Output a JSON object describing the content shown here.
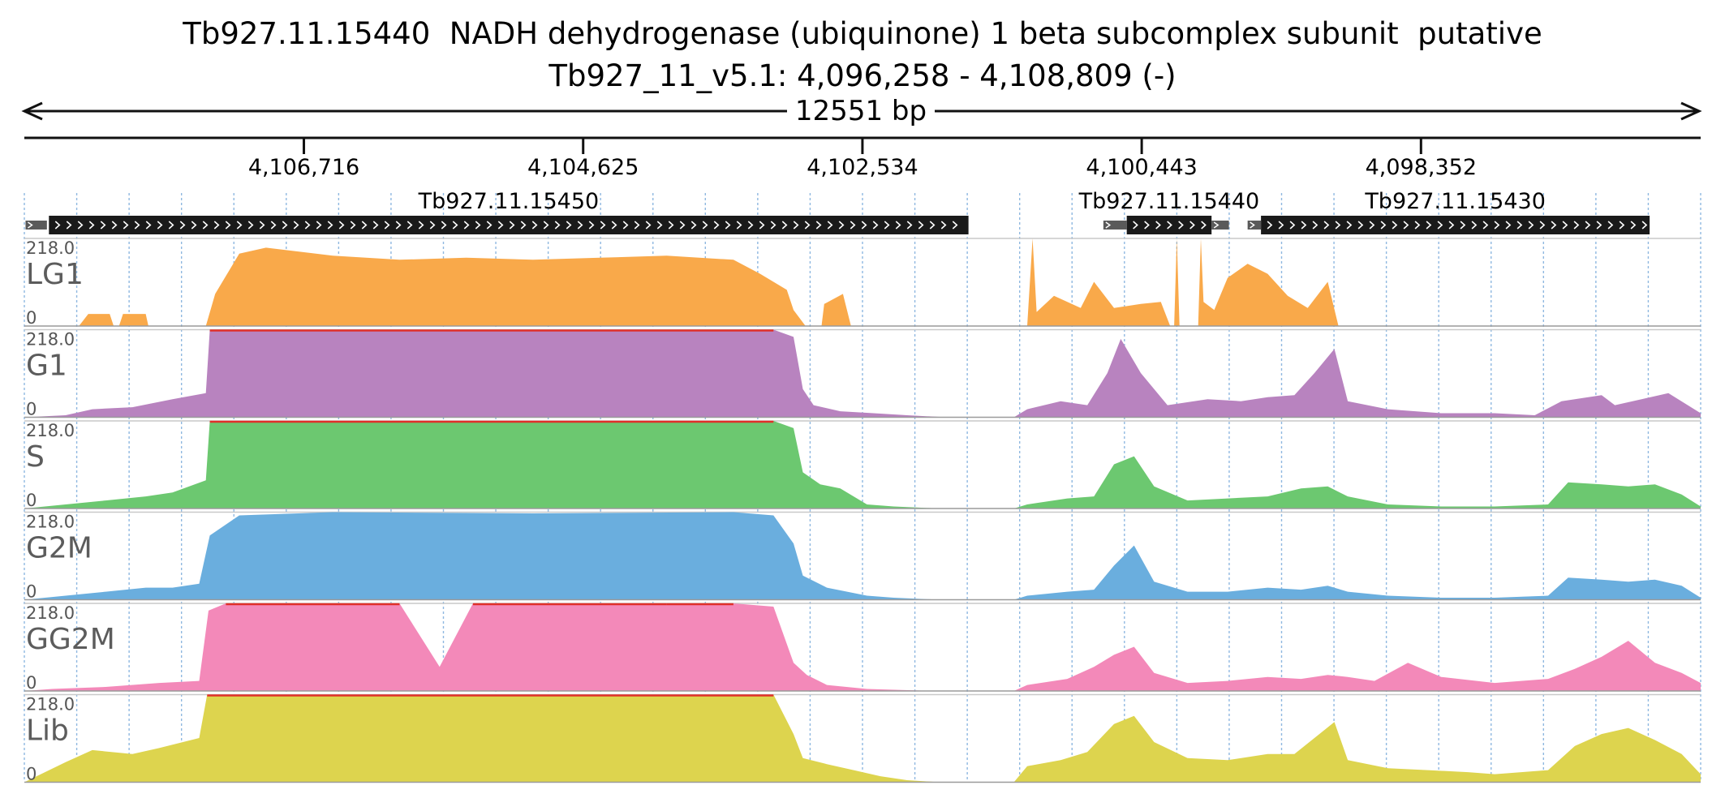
{
  "title": {
    "line1": "Tb927.11.15440  NADH dehydrogenase (ubiquinone) 1 beta subcomplex subunit  putative",
    "line2": "Tb927_11_v5.1: 4,096,258 - 4,108,809 (-)"
  },
  "span": {
    "label": "12551 bp"
  },
  "ticks": [
    "4,106,716",
    "4,104,625",
    "4,102,534",
    "4,100,443",
    "4,098,352"
  ],
  "genes": [
    {
      "name": "Tb927.11.15450",
      "start": 4108625,
      "end": 4101740,
      "strand": "-"
    },
    {
      "name": "Tb927.11.15440",
      "start": 4100555,
      "end": 4099920,
      "strand": "-"
    },
    {
      "name": "Tb927.11.15430",
      "start": 4099550,
      "end": 4096640,
      "strand": "-"
    }
  ],
  "colors": {
    "LG1": "#f9a94a",
    "G1": "#b883bf",
    "S": "#6cc870",
    "G2M": "#6aaede",
    "GG2M": "#f389b9",
    "Lib": "#ddd44e",
    "clip": "#e0302a",
    "gridline": "#8fb8e0",
    "gene": "#1a1a1a"
  },
  "chart_data": {
    "type": "area",
    "x_axis": "genome coordinate (reversed, minus strand)",
    "xlim": [
      4108809,
      4096258
    ],
    "ylim": [
      0,
      218.0
    ],
    "series": [
      {
        "name": "LG1",
        "points": [
          [
            4108400,
            0
          ],
          [
            4108330,
            30
          ],
          [
            4108170,
            30
          ],
          [
            4108140,
            0
          ],
          [
            4108100,
            0
          ],
          [
            4108070,
            30
          ],
          [
            4107900,
            30
          ],
          [
            4107880,
            0
          ],
          [
            4107450,
            0
          ],
          [
            4107380,
            80
          ],
          [
            4107200,
            180
          ],
          [
            4107000,
            195
          ],
          [
            4106500,
            175
          ],
          [
            4106000,
            165
          ],
          [
            4105500,
            170
          ],
          [
            4105000,
            165
          ],
          [
            4104500,
            170
          ],
          [
            4104000,
            175
          ],
          [
            4103500,
            165
          ],
          [
            4103300,
            130
          ],
          [
            4103100,
            90
          ],
          [
            4103050,
            40
          ],
          [
            4102960,
            0
          ],
          [
            4102840,
            0
          ],
          [
            4102820,
            55
          ],
          [
            4102680,
            80
          ],
          [
            4102620,
            0
          ],
          [
            4101300,
            0
          ],
          [
            4101260,
            218
          ],
          [
            4101230,
            35
          ],
          [
            4101100,
            75
          ],
          [
            4100900,
            45
          ],
          [
            4100800,
            110
          ],
          [
            4100650,
            45
          ],
          [
            4100450,
            55
          ],
          [
            4100300,
            60
          ],
          [
            4100230,
            0
          ],
          [
            4100200,
            0
          ],
          [
            4100180,
            218
          ],
          [
            4100160,
            0
          ],
          [
            4100020,
            0
          ],
          [
            4100000,
            218
          ],
          [
            4099980,
            60
          ],
          [
            4099900,
            40
          ],
          [
            4099800,
            120
          ],
          [
            4099650,
            155
          ],
          [
            4099500,
            130
          ],
          [
            4099350,
            75
          ],
          [
            4099200,
            45
          ],
          [
            4099050,
            110
          ],
          [
            4098970,
            0
          ]
        ]
      },
      {
        "name": "G1",
        "points": [
          [
            4108809,
            0
          ],
          [
            4108500,
            5
          ],
          [
            4108300,
            20
          ],
          [
            4108000,
            25
          ],
          [
            4107700,
            45
          ],
          [
            4107450,
            60
          ],
          [
            4107420,
            218
          ],
          [
            4105000,
            218
          ],
          [
            4103200,
            218
          ],
          [
            4103050,
            200
          ],
          [
            4102980,
            70
          ],
          [
            4102900,
            30
          ],
          [
            4102700,
            15
          ],
          [
            4102450,
            10
          ],
          [
            4102200,
            5
          ],
          [
            4101900,
            0
          ],
          [
            4101400,
            0
          ],
          [
            4101300,
            20
          ],
          [
            4101050,
            40
          ],
          [
            4100850,
            30
          ],
          [
            4100700,
            110
          ],
          [
            4100600,
            195
          ],
          [
            4100450,
            110
          ],
          [
            4100250,
            30
          ],
          [
            4099950,
            45
          ],
          [
            4099700,
            40
          ],
          [
            4099500,
            50
          ],
          [
            4099300,
            55
          ],
          [
            4099150,
            110
          ],
          [
            4099000,
            170
          ],
          [
            4098900,
            40
          ],
          [
            4098600,
            20
          ],
          [
            4098200,
            10
          ],
          [
            4097800,
            10
          ],
          [
            4097500,
            5
          ],
          [
            4097300,
            40
          ],
          [
            4097000,
            55
          ],
          [
            4096900,
            30
          ],
          [
            4096700,
            45
          ],
          [
            4096500,
            60
          ],
          [
            4096258,
            10
          ]
        ]
      },
      {
        "name": "S",
        "points": [
          [
            4108809,
            0
          ],
          [
            4108500,
            10
          ],
          [
            4108200,
            20
          ],
          [
            4107900,
            30
          ],
          [
            4107700,
            40
          ],
          [
            4107450,
            70
          ],
          [
            4107420,
            218
          ],
          [
            4105000,
            218
          ],
          [
            4103200,
            218
          ],
          [
            4103050,
            200
          ],
          [
            4102980,
            90
          ],
          [
            4102850,
            60
          ],
          [
            4102700,
            50
          ],
          [
            4102500,
            10
          ],
          [
            4102300,
            5
          ],
          [
            4101950,
            0
          ],
          [
            4101400,
            0
          ],
          [
            4101300,
            10
          ],
          [
            4101000,
            25
          ],
          [
            4100800,
            30
          ],
          [
            4100650,
            110
          ],
          [
            4100500,
            130
          ],
          [
            4100350,
            55
          ],
          [
            4100100,
            20
          ],
          [
            4099800,
            25
          ],
          [
            4099500,
            30
          ],
          [
            4099250,
            50
          ],
          [
            4099050,
            55
          ],
          [
            4098900,
            30
          ],
          [
            4098600,
            10
          ],
          [
            4098200,
            5
          ],
          [
            4097800,
            5
          ],
          [
            4097400,
            10
          ],
          [
            4097250,
            65
          ],
          [
            4097000,
            60
          ],
          [
            4096800,
            55
          ],
          [
            4096600,
            60
          ],
          [
            4096400,
            35
          ],
          [
            4096258,
            5
          ]
        ]
      },
      {
        "name": "G2M",
        "points": [
          [
            4108809,
            0
          ],
          [
            4108500,
            10
          ],
          [
            4108200,
            20
          ],
          [
            4107900,
            30
          ],
          [
            4107700,
            30
          ],
          [
            4107500,
            40
          ],
          [
            4107420,
            160
          ],
          [
            4107200,
            210
          ],
          [
            4106500,
            218
          ],
          [
            4105000,
            215
          ],
          [
            4103500,
            218
          ],
          [
            4103200,
            210
          ],
          [
            4103050,
            140
          ],
          [
            4102980,
            60
          ],
          [
            4102800,
            30
          ],
          [
            4102500,
            10
          ],
          [
            4102300,
            5
          ],
          [
            4101950,
            0
          ],
          [
            4101400,
            0
          ],
          [
            4101300,
            10
          ],
          [
            4101000,
            20
          ],
          [
            4100800,
            25
          ],
          [
            4100650,
            85
          ],
          [
            4100500,
            135
          ],
          [
            4100350,
            45
          ],
          [
            4100100,
            20
          ],
          [
            4099800,
            20
          ],
          [
            4099500,
            30
          ],
          [
            4099250,
            25
          ],
          [
            4099050,
            35
          ],
          [
            4098900,
            20
          ],
          [
            4098600,
            10
          ],
          [
            4098200,
            5
          ],
          [
            4097800,
            5
          ],
          [
            4097400,
            10
          ],
          [
            4097250,
            55
          ],
          [
            4097000,
            50
          ],
          [
            4096800,
            45
          ],
          [
            4096600,
            50
          ],
          [
            4096400,
            35
          ],
          [
            4096258,
            5
          ]
        ]
      },
      {
        "name": "GG2M",
        "points": [
          [
            4108809,
            0
          ],
          [
            4108600,
            5
          ],
          [
            4108200,
            10
          ],
          [
            4107800,
            20
          ],
          [
            4107500,
            25
          ],
          [
            4107430,
            200
          ],
          [
            4107300,
            218
          ],
          [
            4106000,
            218
          ],
          [
            4105700,
            60
          ],
          [
            4105450,
            218
          ],
          [
            4104000,
            218
          ],
          [
            4103500,
            218
          ],
          [
            4103200,
            210
          ],
          [
            4103050,
            70
          ],
          [
            4102950,
            40
          ],
          [
            4102800,
            15
          ],
          [
            4102500,
            5
          ],
          [
            4102000,
            0
          ],
          [
            4101400,
            0
          ],
          [
            4101300,
            15
          ],
          [
            4101000,
            30
          ],
          [
            4100800,
            60
          ],
          [
            4100650,
            90
          ],
          [
            4100500,
            110
          ],
          [
            4100350,
            45
          ],
          [
            4100100,
            20
          ],
          [
            4099800,
            25
          ],
          [
            4099500,
            35
          ],
          [
            4099250,
            30
          ],
          [
            4099050,
            40
          ],
          [
            4098900,
            35
          ],
          [
            4098700,
            25
          ],
          [
            4098450,
            70
          ],
          [
            4098200,
            35
          ],
          [
            4097800,
            20
          ],
          [
            4097400,
            30
          ],
          [
            4097200,
            55
          ],
          [
            4097000,
            85
          ],
          [
            4096800,
            125
          ],
          [
            4096600,
            70
          ],
          [
            4096400,
            45
          ],
          [
            4096258,
            20
          ]
        ]
      },
      {
        "name": "Lib",
        "points": [
          [
            4108809,
            0
          ],
          [
            4108500,
            50
          ],
          [
            4108300,
            80
          ],
          [
            4108000,
            70
          ],
          [
            4107800,
            85
          ],
          [
            4107500,
            110
          ],
          [
            4107440,
            218
          ],
          [
            4105000,
            218
          ],
          [
            4103200,
            218
          ],
          [
            4103050,
            120
          ],
          [
            4102980,
            60
          ],
          [
            4102800,
            45
          ],
          [
            4102600,
            30
          ],
          [
            4102400,
            15
          ],
          [
            4102200,
            5
          ],
          [
            4101950,
            0
          ],
          [
            4101400,
            0
          ],
          [
            4101300,
            40
          ],
          [
            4101050,
            55
          ],
          [
            4100850,
            75
          ],
          [
            4100650,
            145
          ],
          [
            4100500,
            165
          ],
          [
            4100350,
            100
          ],
          [
            4100100,
            60
          ],
          [
            4099800,
            55
          ],
          [
            4099500,
            70
          ],
          [
            4099300,
            70
          ],
          [
            4099150,
            110
          ],
          [
            4099000,
            150
          ],
          [
            4098900,
            55
          ],
          [
            4098600,
            35
          ],
          [
            4098300,
            30
          ],
          [
            4098000,
            25
          ],
          [
            4097800,
            20
          ],
          [
            4097400,
            30
          ],
          [
            4097200,
            90
          ],
          [
            4097000,
            120
          ],
          [
            4096800,
            135
          ],
          [
            4096600,
            105
          ],
          [
            4096400,
            70
          ],
          [
            4096258,
            20
          ]
        ]
      }
    ]
  }
}
